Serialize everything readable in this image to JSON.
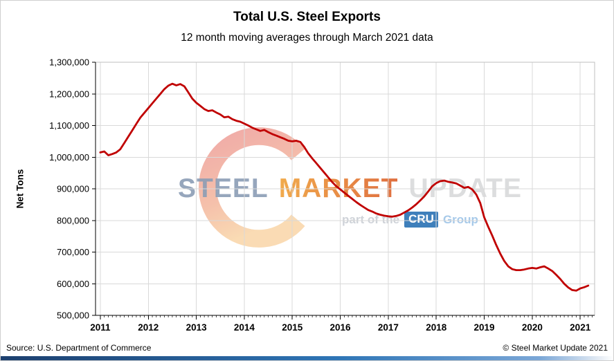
{
  "header": {
    "title": "Total U.S. Steel Exports",
    "subtitle": "12 month moving averages through March 2021 data"
  },
  "watermark": {
    "word1": "STEEL",
    "word2": "MARKET",
    "word3": "UPDATE",
    "tagline_prefix": "part of the",
    "badge": "CRU",
    "tagline_suffix": "Group",
    "badge_color": "#2e75b6"
  },
  "footer": {
    "source": "Source: U.S. Department of Commerce",
    "copyright": "© Steel Market Update 2021"
  },
  "chart_data": {
    "type": "line",
    "title": "Total U.S. Steel Exports",
    "subtitle": "12 month moving averages through March 2021 data",
    "xlabel": "",
    "ylabel": "Net Tons",
    "ylim": [
      500000,
      1300000
    ],
    "ytick_step": 100000,
    "y_tick_labels": [
      "500,000",
      "600,000",
      "700,000",
      "800,000",
      "900,000",
      "1,000,000",
      "1,100,000",
      "1,200,000",
      "1,300,000"
    ],
    "x_ticks": [
      2011,
      2012,
      2013,
      2014,
      2015,
      2016,
      2017,
      2018,
      2019,
      2020,
      2021
    ],
    "x_domain": [
      2010.9,
      2021.3
    ],
    "grid": true,
    "legend": "none",
    "series": [
      {
        "name": "12-month moving average of total U.S. steel exports (net tons)",
        "start": "2011-01",
        "end": "2021-03",
        "frequency": "monthly",
        "color": "#c00000",
        "values": [
          1015000,
          1018000,
          1006000,
          1010000,
          1015000,
          1025000,
          1045000,
          1065000,
          1085000,
          1105000,
          1125000,
          1140000,
          1155000,
          1170000,
          1185000,
          1200000,
          1215000,
          1226000,
          1232000,
          1227000,
          1231000,
          1224000,
          1205000,
          1185000,
          1172000,
          1162000,
          1152000,
          1146000,
          1148000,
          1141000,
          1135000,
          1126000,
          1128000,
          1120000,
          1115000,
          1112000,
          1106000,
          1100000,
          1093000,
          1088000,
          1083000,
          1086000,
          1079000,
          1073000,
          1068000,
          1063000,
          1058000,
          1052000,
          1050000,
          1052000,
          1048000,
          1032000,
          1012000,
          996000,
          981000,
          966000,
          951000,
          936000,
          921000,
          908000,
          898000,
          888000,
          878000,
          868000,
          858000,
          849000,
          841000,
          833000,
          828000,
          822000,
          818000,
          815000,
          813000,
          812000,
          814000,
          818000,
          825000,
          832000,
          841000,
          851000,
          863000,
          876000,
          892000,
          908000,
          918000,
          924000,
          926000,
          922000,
          920000,
          917000,
          910000,
          903000,
          906000,
          898000,
          882000,
          855000,
          810000,
          780000,
          752000,
          722000,
          695000,
          672000,
          655000,
          646000,
          643000,
          643000,
          645000,
          648000,
          650000,
          648000,
          652000,
          655000,
          648000,
          640000,
          628000,
          615000,
          600000,
          588000,
          580000,
          578000,
          585000,
          589000,
          594000
        ]
      }
    ]
  }
}
